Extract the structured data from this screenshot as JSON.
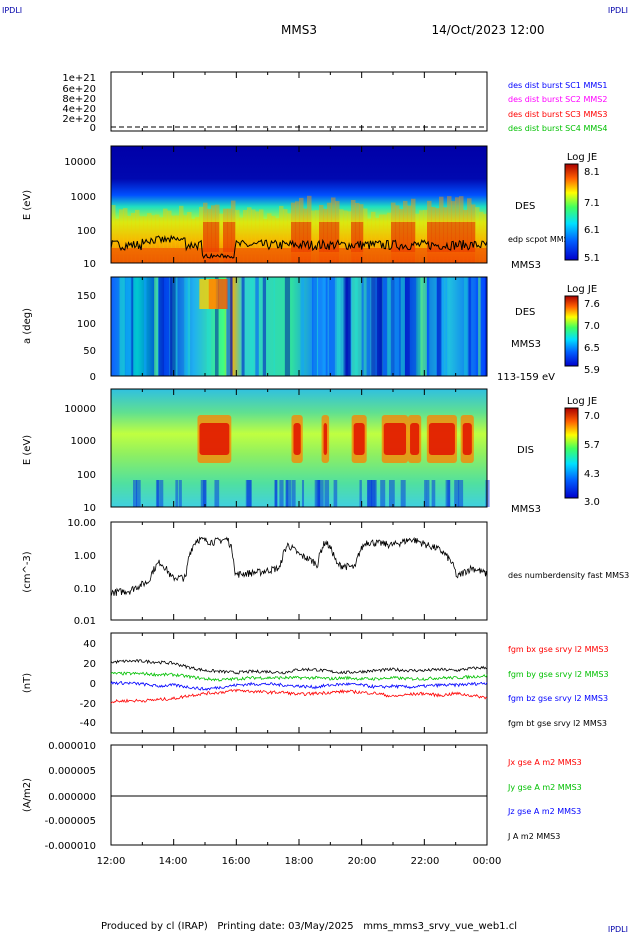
{
  "corner_logo": "IPDLI",
  "header": {
    "spacecraft": "MMS3",
    "datetime": "14/Oct/2023 12:00"
  },
  "footer": {
    "text": "Produced by cl (IRAP)   Printing date: 03/May/2025   mms_mms3_srvy_vue_web1.cl"
  },
  "colors": {
    "red": "#ff0000",
    "green": "#00c000",
    "blue": "#0000ff",
    "magenta": "#ff00ff",
    "black": "#000000"
  },
  "chart_data": [
    {
      "type": "line",
      "panel": "des dist burst",
      "ylabel": "",
      "yticks": [
        "0",
        "2e+20",
        "4e+20",
        "6e+20",
        "8e+20",
        "1e+21"
      ],
      "legend": [
        {
          "label": "des dist burst SC1 MMS1",
          "color": "#0000ff"
        },
        {
          "label": "des dist burst SC2 MMS2",
          "color": "#ff00ff"
        },
        {
          "label": "des dist burst SC3 MMS3",
          "color": "#ff0000"
        },
        {
          "label": "des dist burst SC4 MMS4",
          "color": "#00c000"
        }
      ]
    },
    {
      "type": "heatmap",
      "panel": "DES energy spectrogram",
      "ylabel": "E (eV)",
      "yscale": "log",
      "yticks": [
        "10",
        "100",
        "1000",
        "10000"
      ],
      "right_labels": [
        "DES",
        "MMS3"
      ],
      "overlay_label": "edp scpot MMS3",
      "colorbar": {
        "title": "Log JE",
        "ticks": [
          "8.1",
          "7.1",
          "6.1",
          "5.1"
        ]
      }
    },
    {
      "type": "heatmap",
      "panel": "DES pitch angle",
      "ylabel": "a (deg)",
      "yticks": [
        "0",
        "50",
        "100",
        "150"
      ],
      "right_labels": [
        "DES",
        "MMS3",
        "113-159 eV"
      ],
      "colorbar": {
        "title": "Log JE",
        "ticks": [
          "7.6",
          "7.0",
          "6.5",
          "5.9"
        ]
      }
    },
    {
      "type": "heatmap",
      "panel": "DIS energy spectrogram",
      "ylabel": "E (eV)",
      "yscale": "log",
      "yticks": [
        "10",
        "100",
        "1000",
        "10000"
      ],
      "right_labels": [
        "DIS",
        "MMS3"
      ],
      "colorbar": {
        "title": "Log JE",
        "ticks": [
          "7.0",
          "5.7",
          "4.3",
          "3.0"
        ]
      }
    },
    {
      "type": "line",
      "panel": "density",
      "ylabel": "(cm^-3)",
      "yscale": "log",
      "yticks": [
        "0.01",
        "0.10",
        "1.00",
        "10.00"
      ],
      "legend": [
        {
          "label": "des numberdensity fast MMS3",
          "color": "#000000"
        }
      ]
    },
    {
      "type": "line",
      "panel": "magnetic field",
      "ylabel": "(nT)",
      "yticks": [
        "-40",
        "-20",
        "0",
        "20",
        "40"
      ],
      "ylim": [
        -48,
        48
      ],
      "legend": [
        {
          "label": "fgm bx gse srvy l2 MMS3",
          "color": "#ff0000"
        },
        {
          "label": "fgm by gse srvy l2 MMS3",
          "color": "#00c000"
        },
        {
          "label": "fgm bz gse srvy l2 MMS3",
          "color": "#0000ff"
        },
        {
          "label": "fgm bt gse srvy l2 MMS3",
          "color": "#000000"
        }
      ],
      "series": [
        {
          "name": "bt",
          "x": [
            "12:00",
            "12:30",
            "13:00",
            "13:30",
            "14:00",
            "14:30",
            "15:00",
            "15:30",
            "16:00",
            "16:30",
            "17:00",
            "17:30",
            "18:00",
            "18:30",
            "19:00",
            "19:30",
            "20:00",
            "20:30",
            "21:00",
            "21:30",
            "22:00",
            "22:30",
            "23:00",
            "23:30",
            "00:00"
          ],
          "values": [
            20,
            21,
            21,
            20,
            19,
            15,
            12,
            11,
            10,
            11,
            11,
            10,
            13,
            13,
            11,
            10,
            11,
            12,
            13,
            12,
            12,
            13,
            12,
            14,
            15
          ]
        },
        {
          "name": "by",
          "values": [
            9,
            9,
            9,
            8,
            8,
            6,
            4,
            3,
            4,
            5,
            5,
            5,
            5,
            5,
            4,
            5,
            4,
            4,
            5,
            4,
            4,
            5,
            5,
            6,
            7
          ]
        },
        {
          "name": "bz",
          "values": [
            0,
            0,
            -1,
            -3,
            -2,
            -4,
            -6,
            -4,
            -2,
            -1,
            -1,
            -2,
            -3,
            -4,
            -2,
            -1,
            -2,
            -4,
            -3,
            -4,
            -3,
            -2,
            -2,
            -1,
            0
          ]
        },
        {
          "name": "bx",
          "values": [
            -18,
            -17,
            -17,
            -16,
            -15,
            -12,
            -10,
            -9,
            -7,
            -8,
            -9,
            -9,
            -11,
            -10,
            -9,
            -8,
            -9,
            -10,
            -13,
            -11,
            -10,
            -12,
            -10,
            -12,
            -14
          ]
        }
      ]
    },
    {
      "type": "line",
      "panel": "current density",
      "ylabel": "(A/m2)",
      "yticks": [
        "-0.000010",
        "-0.000005",
        "0.000000",
        "0.000005",
        "0.000010"
      ],
      "legend": [
        {
          "label": "Jx gse A m2 MMS3",
          "color": "#ff0000"
        },
        {
          "label": "Jy gse A m2 MMS3",
          "color": "#00c000"
        },
        {
          "label": "Jz gse A m2 MMS3",
          "color": "#0000ff"
        },
        {
          "label": "J A m2 MMS3",
          "color": "#000000"
        }
      ]
    }
  ],
  "x_axis": {
    "ticks": [
      "12:00",
      "14:00",
      "16:00",
      "18:00",
      "20:00",
      "22:00",
      "00:00"
    ]
  }
}
